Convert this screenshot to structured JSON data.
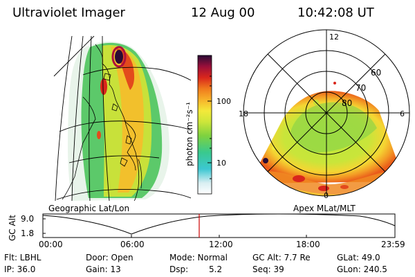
{
  "header": {
    "instrument": "Ultraviolet Imager",
    "date": "12 Aug 00",
    "time": "10:42:08 UT"
  },
  "colorbar": {
    "label": "photon cm⁻²s⁻¹",
    "ticks": [
      "100",
      "10"
    ]
  },
  "left_panel": {
    "caption": "Geographic Lat/Lon"
  },
  "right_panel": {
    "caption": "Apex MLat/MLT",
    "mlt_labels": {
      "top": "12",
      "left": "18",
      "right": "6",
      "bottom": "0"
    },
    "lat_labels": [
      "60",
      "70",
      "80"
    ]
  },
  "altitude_plot": {
    "ylabel": "GC Alt",
    "yticks": [
      "9.0",
      "1.8"
    ],
    "xticks": [
      "00:00",
      "06:00",
      "12:00",
      "18:00",
      "23:59"
    ],
    "marker_time": "10:42"
  },
  "info": {
    "filter": "Flt: LBHL",
    "ip": "IP: 36.0",
    "door": "Door: Open",
    "gain": "Gain: 13",
    "mode_label": "Mode: Normal",
    "dsp_label": "Dsp:",
    "dsp_value": "5.2",
    "gcalt": "GC Alt: 7.7 Re",
    "seq": "Seq: 39",
    "glat": "GLat: 49.0",
    "glon": "GLon: 240.5"
  },
  "colors": {
    "marker": "#cc0000"
  }
}
